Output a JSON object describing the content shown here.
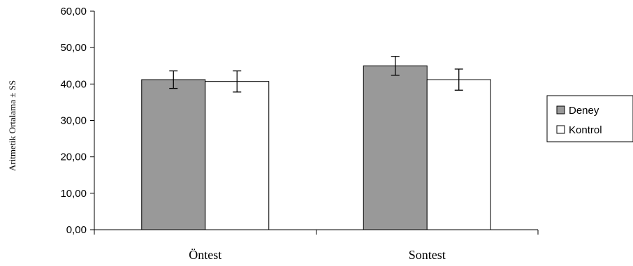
{
  "chart_data": {
    "type": "bar",
    "categories": [
      "Öntest",
      "Sontest"
    ],
    "series": [
      {
        "name": "Deney",
        "values": [
          41.2,
          45.0
        ],
        "errors": [
          2.4,
          2.6
        ],
        "color": "#999999"
      },
      {
        "name": "Kontrol",
        "values": [
          40.7,
          41.2
        ],
        "errors": [
          2.9,
          2.9
        ],
        "color": "#ffffff"
      }
    ],
    "ylabel": "Aritmetik Ortalama ± SS",
    "ylim": [
      0,
      60
    ],
    "yticks": [
      0,
      10,
      20,
      30,
      40,
      50,
      60
    ],
    "ytick_labels": [
      "0,00",
      "10,00",
      "20,00",
      "30,00",
      "40,00",
      "50,00",
      "60,00"
    ],
    "legend_position": "right",
    "grid": false
  }
}
